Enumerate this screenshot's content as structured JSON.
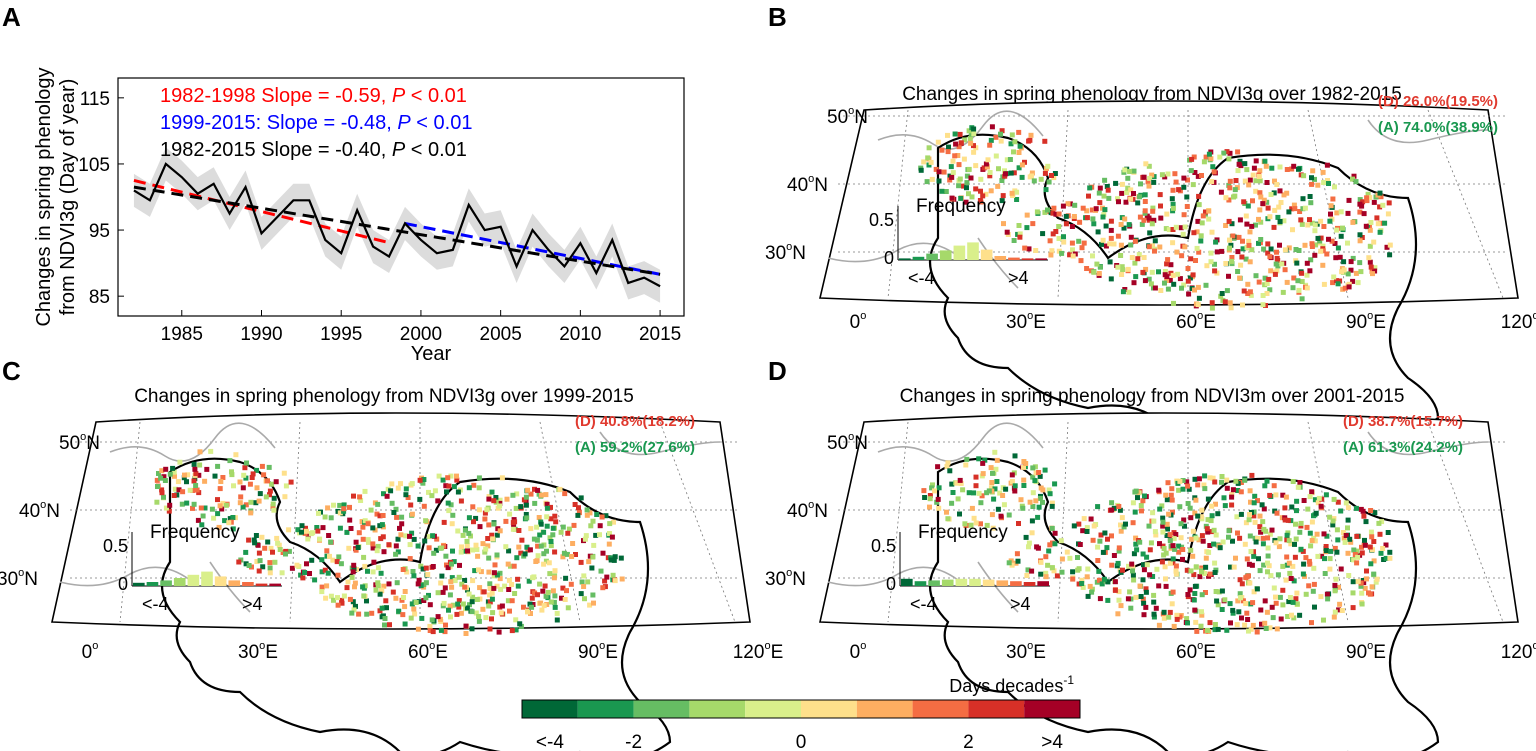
{
  "panel_labels": [
    "A",
    "B",
    "C",
    "D"
  ],
  "chart_data": [
    {
      "panel": "A",
      "type": "line",
      "ylabel": [
        "Changes in spring phenology",
        "from NDVI3g (Day of year)"
      ],
      "xlabel": "Year",
      "xlim": [
        1981,
        2016.5
      ],
      "ylim": [
        82,
        118
      ],
      "xticks": [
        1985,
        1990,
        1995,
        2000,
        2005,
        2010,
        2015
      ],
      "yticks": [
        85,
        95,
        105,
        115
      ],
      "x": [
        1982,
        1983,
        1984,
        1985,
        1986,
        1987,
        1988,
        1989,
        1990,
        1991,
        1992,
        1993,
        1994,
        1995,
        1996,
        1997,
        1998,
        1999,
        2000,
        2001,
        2002,
        2003,
        2004,
        2005,
        2006,
        2007,
        2008,
        2009,
        2010,
        2011,
        2012,
        2013,
        2014,
        2015
      ],
      "series": [
        {
          "name": "NDVI3g spring phenology",
          "values": [
            101,
            99.5,
            105,
            103,
            100.5,
            102,
            97.5,
            101.5,
            94.5,
            97,
            99.5,
            99.5,
            93.5,
            91.5,
            98,
            92.5,
            91,
            96,
            93.5,
            91.5,
            92,
            98.8,
            95,
            95.5,
            89.5,
            95,
            92,
            89.5,
            93,
            88.5,
            93.5,
            87,
            87.8,
            86.5
          ]
        },
        {
          "name": "uncertainty band half-width",
          "values": [
            2.5,
            2.5,
            2.5,
            2.5,
            2.5,
            2.5,
            2.5,
            2.5,
            2.5,
            2.5,
            2.5,
            2.5,
            2.5,
            2.5,
            2.5,
            2.5,
            2.5,
            2.5,
            2.5,
            2.5,
            2.5,
            2.5,
            2.5,
            2.5,
            2.5,
            2.5,
            2.5,
            2.5,
            2.5,
            2.5,
            2.5,
            2.5,
            2.5,
            2.5
          ]
        }
      ],
      "trends": [
        {
          "period": "1982-1998",
          "x0": 1982,
          "x1": 1998,
          "y0": 102.5,
          "y1": 93.1,
          "color": "#ff0000",
          "label": "1982-1998 Slope = -0.59, ",
          "p_label": "P",
          "p_value": " < 0.01"
        },
        {
          "period": "1999-2015",
          "x0": 1999,
          "x1": 2015,
          "y0": 96.0,
          "y1": 88.3,
          "color": "#0000ff",
          "label": "1999-2015: Slope = -0.48, ",
          "p_label": "P",
          "p_value": " < 0.01"
        },
        {
          "period": "1982-2015",
          "x0": 1982,
          "x1": 2015,
          "y0": 101.5,
          "y1": 88.3,
          "color": "#000000",
          "label": "1982-2015 Slope = -0.40, ",
          "p_label": "P",
          "p_value": " < 0.01"
        }
      ],
      "colors": {
        "line": "#000000",
        "band": "#dcdcdc"
      }
    },
    {
      "panel": "B",
      "type": "heatmap",
      "title": "Changes in spring phenology from NDVI3g over 1982-2015",
      "decrease_label": "(D) 26.0%(19.5%)",
      "advance_label": "(A) 74.0%(38.9%)",
      "inset_title": "Frequency",
      "inset_yticks": [
        "0.5",
        "0"
      ],
      "inset_xlabels": [
        "<-4",
        ">4"
      ],
      "frequency": [
        0.02,
        0.04,
        0.08,
        0.12,
        0.18,
        0.22,
        0.13,
        0.05,
        0.03,
        0.02,
        0.02
      ],
      "lat_labels": [
        "50",
        "40",
        "30"
      ],
      "lon_labels": [
        "0",
        "30",
        "60",
        "90",
        "120"
      ]
    },
    {
      "panel": "C",
      "type": "heatmap",
      "title": "Changes in spring phenology from NDVI3g over 1999-2015",
      "decrease_label": "(D) 40.8%(18.2%)",
      "advance_label": "(A) 59.2%(27.6%)",
      "inset_title": "Frequency",
      "inset_yticks": [
        "0.5",
        "0"
      ],
      "inset_xlabels": [
        "<-4",
        ">4"
      ],
      "frequency": [
        0.04,
        0.05,
        0.07,
        0.1,
        0.14,
        0.18,
        0.12,
        0.07,
        0.05,
        0.03,
        0.03
      ],
      "lat_labels": [
        "50",
        "40",
        "30"
      ],
      "lon_labels": [
        "0",
        "30",
        "60",
        "90",
        "120"
      ]
    },
    {
      "panel": "D",
      "type": "heatmap",
      "title": "Changes in spring phenology from NDVI3m over 2001-2015",
      "decrease_label": "(D) 38.7%(15.7%)",
      "advance_label": "(A) 61.3%(24.2%)",
      "inset_title": "Frequency",
      "inset_yticks": [
        "0.5",
        "0"
      ],
      "inset_xlabels": [
        "<-4",
        ">4"
      ],
      "frequency": [
        0.09,
        0.06,
        0.07,
        0.08,
        0.09,
        0.09,
        0.08,
        0.07,
        0.06,
        0.05,
        0.06
      ],
      "lat_labels": [
        "50",
        "40",
        "30"
      ],
      "lon_labels": [
        "0",
        "30",
        "60",
        "90",
        "120"
      ]
    }
  ],
  "colorbar": {
    "title": "Days decades",
    "title_exp": "-1",
    "colors": [
      "#006837",
      "#1a9850",
      "#66bd63",
      "#a6d96a",
      "#d9ef8b",
      "#fee08b",
      "#fdae61",
      "#f46d43",
      "#d73027",
      "#a50026"
    ],
    "tick_labels": [
      "<-4",
      "-2",
      "0",
      "2",
      ">4"
    ]
  }
}
